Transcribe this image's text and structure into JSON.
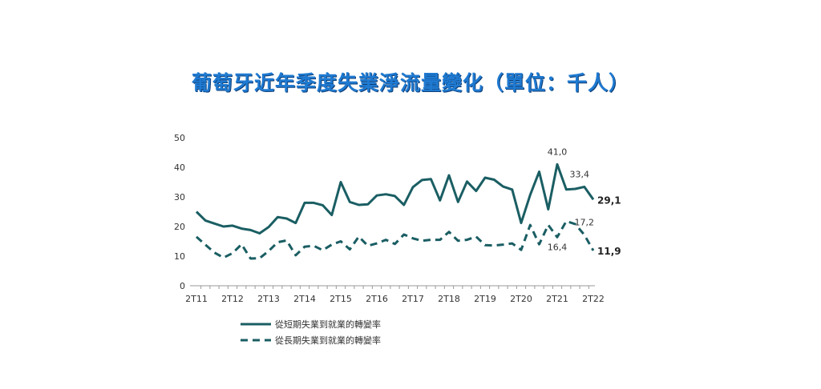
{
  "title": "葡萄牙近年季度失業淨流量變化（單位：千人）",
  "colors": {
    "title": "#1f7ad1",
    "series": "#1a5e63",
    "axis": "#999999"
  },
  "chart_data": {
    "type": "line",
    "xlabel": "",
    "ylabel": "",
    "ylim": [
      0,
      50
    ],
    "yticks": [
      0,
      10,
      20,
      30,
      40,
      50
    ],
    "grid": false,
    "legend_position": "bottom",
    "x_tick_labels": [
      "2T11",
      "2T12",
      "2T13",
      "2T14",
      "2T15",
      "2T16",
      "2T17",
      "2T18",
      "2T19",
      "2T20",
      "2T21",
      "2T22"
    ],
    "series": [
      {
        "name": "從短期失業到就業的轉變率",
        "style": "solid",
        "values": [
          25.0,
          22.0,
          21.0,
          20.0,
          20.3,
          19.3,
          18.8,
          17.7,
          19.8,
          23.2,
          22.7,
          21.2,
          28.0,
          28.0,
          27.2,
          23.9,
          35.0,
          28.3,
          27.3,
          27.5,
          30.5,
          30.9,
          30.3,
          27.3,
          33.3,
          35.7,
          36.0,
          28.8,
          37.3,
          28.3,
          35.2,
          32.0,
          36.5,
          35.8,
          33.5,
          32.5,
          21.2,
          30.7,
          38.5,
          25.8,
          41.0,
          32.5,
          32.7,
          33.4,
          29.1
        ]
      },
      {
        "name": "從長期失業到就業的轉變率",
        "style": "dashed",
        "values": [
          16.5,
          13.8,
          11.2,
          9.5,
          11.0,
          14.0,
          9.2,
          9.3,
          11.7,
          14.7,
          15.3,
          10.3,
          13.2,
          13.5,
          12.0,
          13.9,
          15.0,
          12.3,
          16.6,
          13.5,
          14.3,
          15.5,
          14.1,
          17.3,
          16.0,
          15.2,
          15.5,
          15.5,
          18.2,
          15.2,
          15.5,
          16.6,
          13.7,
          13.6,
          13.9,
          14.3,
          12.1,
          20.5,
          14.0,
          20.5,
          16.4,
          21.8,
          20.8,
          17.2,
          11.9
        ]
      }
    ],
    "annotations": [
      {
        "series": 0,
        "index": 40,
        "label": "41,0",
        "bold": false
      },
      {
        "series": 0,
        "index": 43,
        "label": "33,4",
        "bold": false
      },
      {
        "series": 0,
        "index": 44,
        "label": "29,1",
        "bold": true
      },
      {
        "series": 1,
        "index": 40,
        "label": "16,4",
        "bold": false
      },
      {
        "series": 1,
        "index": 43,
        "label": "17,2",
        "bold": false
      },
      {
        "series": 1,
        "index": 44,
        "label": "11,9",
        "bold": true
      }
    ]
  }
}
